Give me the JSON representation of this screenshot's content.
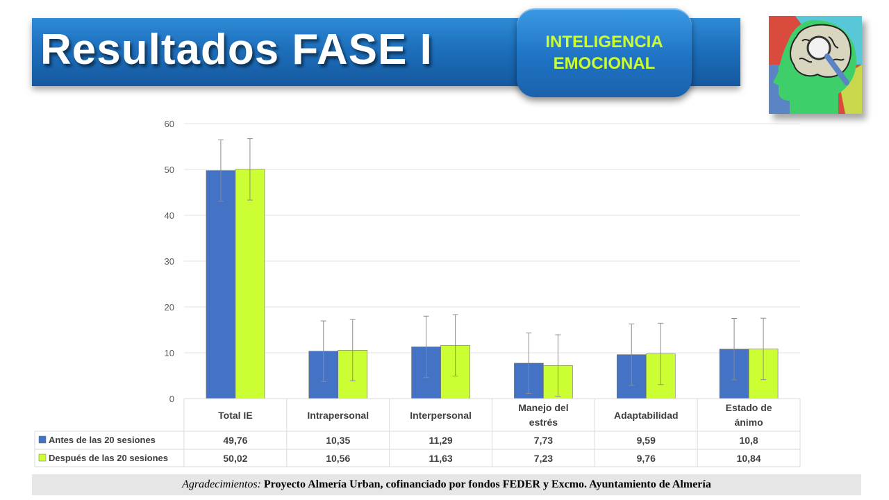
{
  "header": {
    "title": "Resultados FASE I",
    "badge_line1": "INTELIGENCIA",
    "badge_line2": "EMOCIONAL",
    "logo_icon": "brain-magnifier-icon"
  },
  "footer": {
    "label": "Agradecimientos:",
    "text": " Proyecto Almería Urban, cofinanciado por fondos FEDER y Excmo. Ayuntamiento de Almería"
  },
  "colors": {
    "title_bg": "#1d6fbc",
    "badge_text": "#ccff33",
    "series_before": "#4472c4",
    "series_after": "#ccff33"
  },
  "chart_data": {
    "type": "bar",
    "categories": [
      [
        "Total IE"
      ],
      [
        "Intrapersonal"
      ],
      [
        "Interpersonal"
      ],
      [
        "Manejo del",
        "estrés"
      ],
      [
        "Adaptabilidad"
      ],
      [
        "Estado de",
        "ánimo"
      ]
    ],
    "series": [
      {
        "name": "Antes de las 20 sesiones",
        "color": "#4472c4",
        "values": [
          49.76,
          10.35,
          11.29,
          7.73,
          9.59,
          10.8
        ],
        "labels": [
          "49,76",
          "10,35",
          "11,29",
          "7,73",
          "9,59",
          "10,8"
        ],
        "error": [
          6.7,
          6.6,
          6.7,
          6.6,
          6.7,
          6.7
        ]
      },
      {
        "name": "Después de las 20 sesiones",
        "color": "#ccff33",
        "values": [
          50.02,
          10.56,
          11.63,
          7.23,
          9.76,
          10.84
        ],
        "labels": [
          "50,02",
          "10,56",
          "11,63",
          "7,23",
          "9,76",
          "10,84"
        ],
        "error": [
          6.7,
          6.7,
          6.7,
          6.7,
          6.7,
          6.7
        ]
      }
    ],
    "ylim": [
      0,
      60
    ],
    "yticks": [
      0,
      10,
      20,
      30,
      40,
      50,
      60
    ],
    "grid": true,
    "legend": "data-table",
    "error_bars": true
  }
}
